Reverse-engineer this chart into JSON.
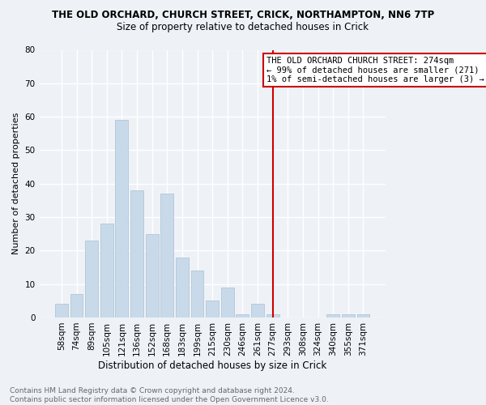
{
  "title": "THE OLD ORCHARD, CHURCH STREET, CRICK, NORTHAMPTON, NN6 7TP",
  "subtitle": "Size of property relative to detached houses in Crick",
  "xlabel": "Distribution of detached houses by size in Crick",
  "ylabel": "Number of detached properties",
  "bar_labels": [
    "58sqm",
    "74sqm",
    "89sqm",
    "105sqm",
    "121sqm",
    "136sqm",
    "152sqm",
    "168sqm",
    "183sqm",
    "199sqm",
    "215sqm",
    "230sqm",
    "246sqm",
    "261sqm",
    "277sqm",
    "293sqm",
    "308sqm",
    "324sqm",
    "340sqm",
    "355sqm",
    "371sqm"
  ],
  "bar_values": [
    4,
    7,
    23,
    28,
    59,
    38,
    25,
    37,
    18,
    14,
    5,
    9,
    1,
    4,
    1,
    0,
    0,
    0,
    1,
    1,
    1
  ],
  "bar_color": "#c8daea",
  "bar_edge_color": "#aabfd0",
  "vline_index": 14,
  "vline_color": "#cc0000",
  "annotation_text": "THE OLD ORCHARD CHURCH STREET: 274sqm\n← 99% of detached houses are smaller (271)\n1% of semi-detached houses are larger (3) →",
  "annotation_box_color": "#ffffff",
  "annotation_box_edge": "#cc0000",
  "ylim": [
    0,
    80
  ],
  "yticks": [
    0,
    10,
    20,
    30,
    40,
    50,
    60,
    70,
    80
  ],
  "footer": "Contains HM Land Registry data © Crown copyright and database right 2024.\nContains public sector information licensed under the Open Government Licence v3.0.",
  "background_color": "#eef2f7",
  "title_fontsize": 8.5,
  "subtitle_fontsize": 8.5,
  "ylabel_fontsize": 8,
  "xlabel_fontsize": 8.5,
  "tick_fontsize": 7.5,
  "footer_fontsize": 6.5,
  "annotation_fontsize": 7.5
}
